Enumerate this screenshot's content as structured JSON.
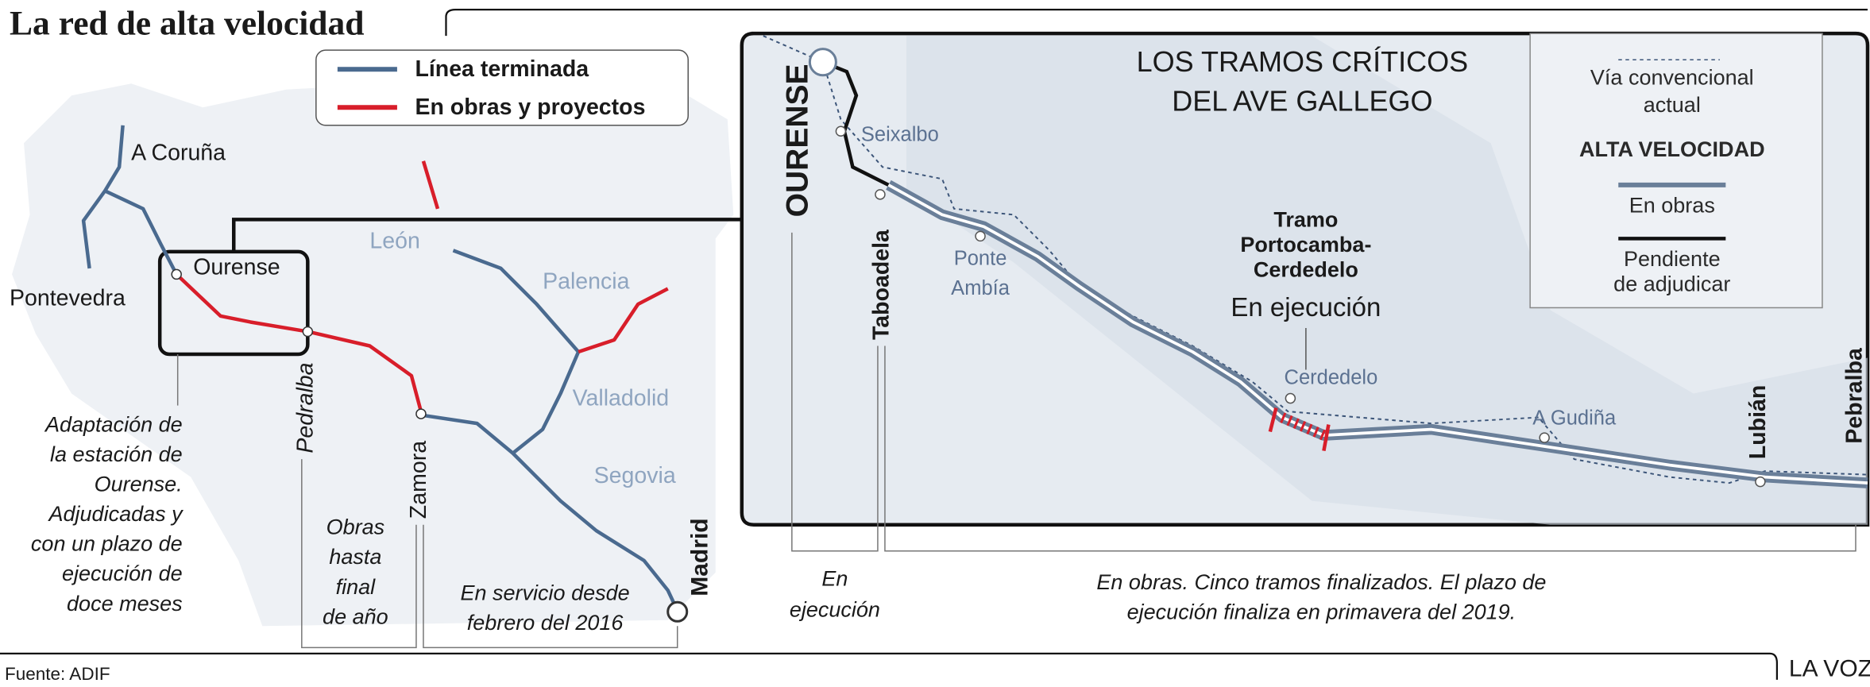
{
  "title": "La red de alta velocidad",
  "legend": [
    "Línea terminada",
    "En obras y proyectos"
  ],
  "left_map": {
    "labels": {
      "a_coruna": "A Coruña",
      "pontevedra": "Pontevedra",
      "ourense": "Ourense",
      "leon": "León",
      "palencia": "Palencia",
      "valladolid": "Valladolid",
      "segovia": "Segovia",
      "madrid": "Madrid",
      "zamora": "Zamora",
      "pedralba": "Pedralba"
    },
    "note_ourense": [
      "Adaptación de",
      "la estación de",
      "Ourense.",
      "Adjudicadas y",
      "con un plazo de",
      "ejecución de",
      "doce meses"
    ],
    "note_obras": [
      "Obras",
      "hasta",
      "final",
      "de año"
    ],
    "note_servicio": [
      "En servicio desde",
      "febrero del 2016"
    ]
  },
  "inset": {
    "title": [
      "LOS TRAMOS CRÍTICOS",
      "DEL AVE GALLEGO"
    ],
    "places": {
      "ourense": "OURENSE",
      "seixalbo": "Seixalbo",
      "taboadela": "Taboadela",
      "ponte_ambia": [
        "Ponte",
        "Ambía"
      ],
      "cerdedelo": "Cerdedelo",
      "a_gudina": "A Gudiña",
      "lubian": "Lubián",
      "pebralba": "Pebralba"
    },
    "tramo": [
      "Tramo",
      "Portocamba-",
      "Cerdedelo"
    ],
    "tramo_status": "En ejecución",
    "legend": {
      "conventional": [
        "Vía convencional",
        "actual"
      ],
      "heading": "ALTA VELOCIDAD",
      "works": "En obras",
      "pending": [
        "Pendiente",
        "de adjudicar"
      ]
    },
    "note_ejecucion": [
      "En",
      "ejecución"
    ],
    "note_obras": [
      "En obras. Cinco tramos finalizados. El plazo de",
      "ejecución finaliza en primavera del 2019."
    ]
  },
  "footer": {
    "source": "Fuente: ADIF",
    "brand": "LA VOZ"
  }
}
